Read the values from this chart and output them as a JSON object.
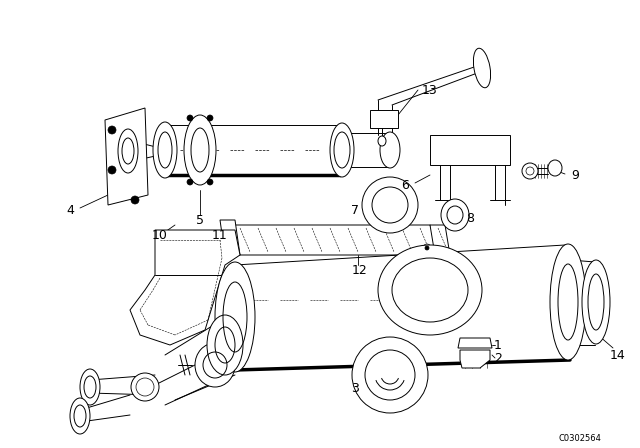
{
  "bg_color": "#ffffff",
  "line_color": "#000000",
  "diagram_code": "C0302564",
  "label_fontsize": 8,
  "code_fontsize": 6,
  "lw": 0.7
}
